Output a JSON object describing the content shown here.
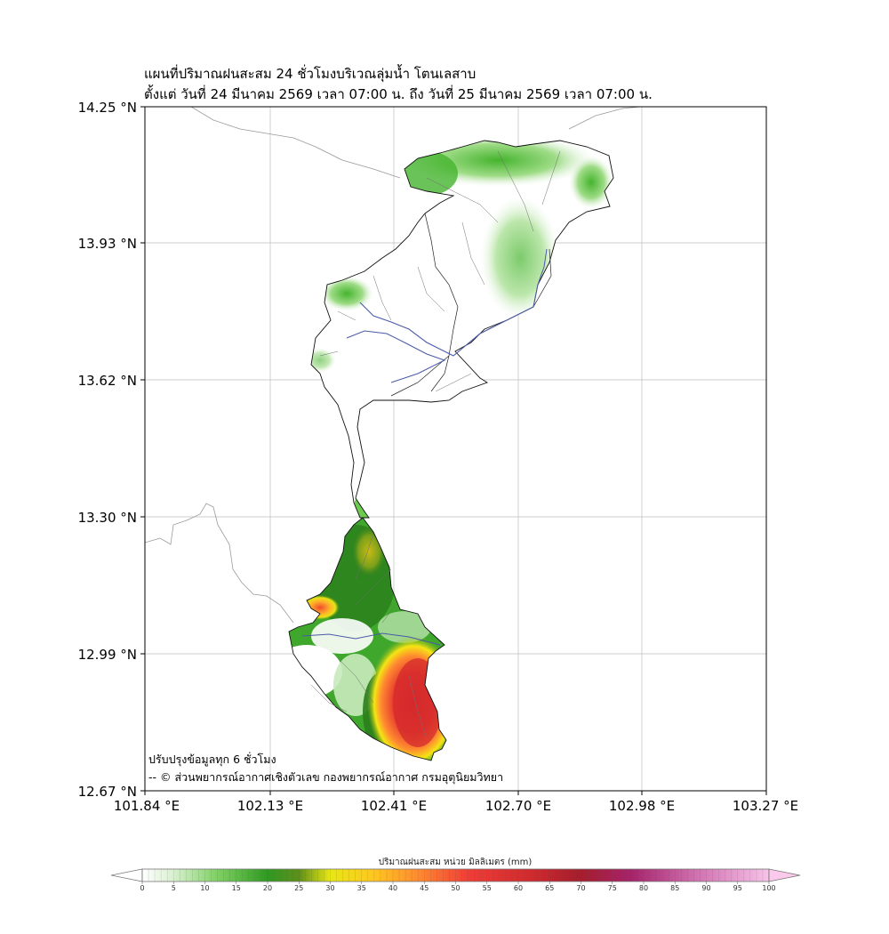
{
  "map": {
    "title_line1": "แผนที่ปริมาณฝนสะสม 24 ชั่วโมงบริเวณลุ่มน้ำ โตนเลสาบ",
    "title_line2": "ตั้งแต่ วันที่ 24 มีนาคม 2569 เวลา 07:00 น. ถึง วันที่ 25 มีนาคม 2569 เวลา 07:00 น.",
    "lat_ticks": [
      "14.25 °N",
      "13.93 °N",
      "13.62 °N",
      "13.30 °N",
      "12.99 °N",
      "12.67 °N"
    ],
    "lon_ticks": [
      "101.84 °E",
      "102.13 °E",
      "102.41 °E",
      "102.70 °E",
      "102.98 °E",
      "103.27 °E"
    ],
    "update_note": "ปรับปรุงข้อมูลทุก 6 ชั่วโมง",
    "credit": "-- © ส่วนพยากรณ์อากาศเชิงตัวเลข กองพยากรณ์อากาศ กรมอุตุนิยมวิทยา"
  },
  "colorbar": {
    "label": "ปริมาณฝนสะสม หน่วย มิลลิเมตร (mm)",
    "ticks": [
      "0",
      "5",
      "10",
      "15",
      "20",
      "25",
      "30",
      "35",
      "40",
      "45",
      "50",
      "55",
      "60",
      "65",
      "70",
      "75",
      "80",
      "85",
      "90",
      "95",
      "100"
    ],
    "colors": [
      "#ffffff",
      "#e8f5e4",
      "#c9eabc",
      "#9fdc87",
      "#6ccb4f",
      "#45b42e",
      "#2f9a22",
      "#2a7d1c",
      "#6f9a1a",
      "#b7b515",
      "#f2ea14",
      "#ffd21c",
      "#ffa92a",
      "#ff7a33",
      "#f8483a",
      "#e22b32",
      "#c4232a",
      "#a51d2d",
      "#a31e62",
      "#c95aa4",
      "#e9a7d8",
      "#fbd0ee"
    ]
  }
}
